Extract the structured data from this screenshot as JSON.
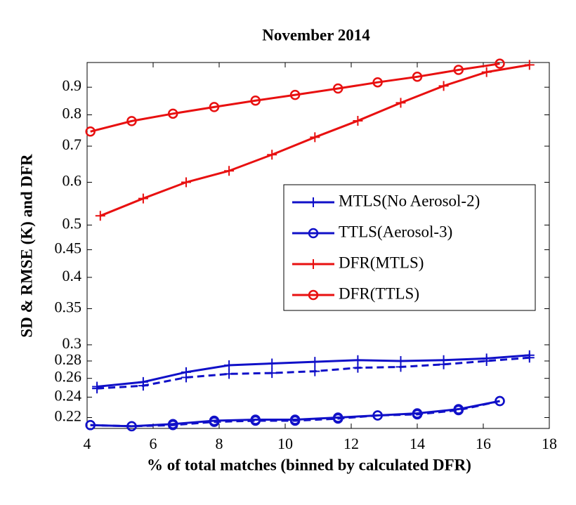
{
  "chart_data": {
    "type": "line",
    "title": "November 2014",
    "xlabel": "% of total matches (binned by calculated DFR)",
    "ylabel": "SD & RMSE (K) and DFR",
    "log_y": true,
    "xlim": [
      4,
      18
    ],
    "xticks": [
      4,
      6,
      8,
      10,
      12,
      14,
      16,
      18
    ],
    "ylim": [
      0.21,
      1.0
    ],
    "yticks": [
      0.22,
      0.24,
      0.26,
      0.28,
      0.3,
      0.35,
      0.4,
      0.45,
      0.5,
      0.6,
      0.7,
      0.8,
      0.9
    ],
    "legend": "center-right",
    "series": [
      {
        "name": "MTLS(No Aerosol-2)",
        "color": "#1010c8",
        "marker": "plus",
        "dash": "solid",
        "x": [
          4.3,
          5.7,
          7.0,
          8.3,
          9.6,
          10.9,
          12.2,
          13.5,
          14.8,
          16.1,
          17.4
        ],
        "values": [
          0.251,
          0.256,
          0.267,
          0.275,
          0.277,
          0.279,
          0.281,
          0.28,
          0.281,
          0.283,
          0.287
        ]
      },
      {
        "name": null,
        "color": "#1010c8",
        "marker": "plus",
        "dash": "dashed",
        "x": [
          4.3,
          5.7,
          7.0,
          8.3,
          9.6,
          10.9,
          12.2,
          13.5,
          14.8,
          16.1,
          17.4
        ],
        "values": [
          0.249,
          0.252,
          0.261,
          0.265,
          0.266,
          0.268,
          0.272,
          0.273,
          0.276,
          0.28,
          0.284
        ]
      },
      {
        "name": "TTLS(Aerosol-3)",
        "color": "#1010c8",
        "marker": "circle",
        "dash": "solid",
        "x": [
          4.1,
          5.35,
          6.6,
          7.85,
          9.1,
          10.3,
          11.6,
          12.8,
          14.0,
          15.25,
          16.5
        ],
        "values": [
          0.213,
          0.212,
          0.214,
          0.217,
          0.218,
          0.218,
          0.22,
          0.222,
          0.224,
          0.228,
          0.236
        ]
      },
      {
        "name": null,
        "color": "#1010c8",
        "marker": "circle",
        "dash": "dashed",
        "x": [
          4.1,
          5.35,
          6.6,
          7.85,
          9.1,
          10.3,
          11.6,
          12.8,
          14.0,
          15.25,
          16.5
        ],
        "values": [
          0.213,
          0.212,
          0.213,
          0.216,
          0.217,
          0.217,
          0.219,
          0.222,
          0.223,
          0.227,
          0.236
        ]
      },
      {
        "name": "DFR(MTLS)",
        "color": "#e81010",
        "marker": "plus",
        "dash": "solid",
        "x": [
          4.4,
          5.7,
          7.0,
          8.3,
          9.6,
          10.9,
          12.2,
          13.5,
          14.8,
          16.1,
          17.4
        ],
        "values": [
          0.52,
          0.56,
          0.6,
          0.63,
          0.675,
          0.727,
          0.78,
          0.842,
          0.905,
          0.96,
          0.99
        ]
      },
      {
        "name": "DFR(TTLS)",
        "color": "#e81010",
        "marker": "circle",
        "dash": "solid",
        "x": [
          4.1,
          5.35,
          6.6,
          7.85,
          9.1,
          10.3,
          11.6,
          12.8,
          14.0,
          15.25,
          16.5
        ],
        "values": [
          0.745,
          0.779,
          0.804,
          0.827,
          0.85,
          0.871,
          0.895,
          0.919,
          0.941,
          0.969,
          0.995
        ]
      }
    ]
  }
}
